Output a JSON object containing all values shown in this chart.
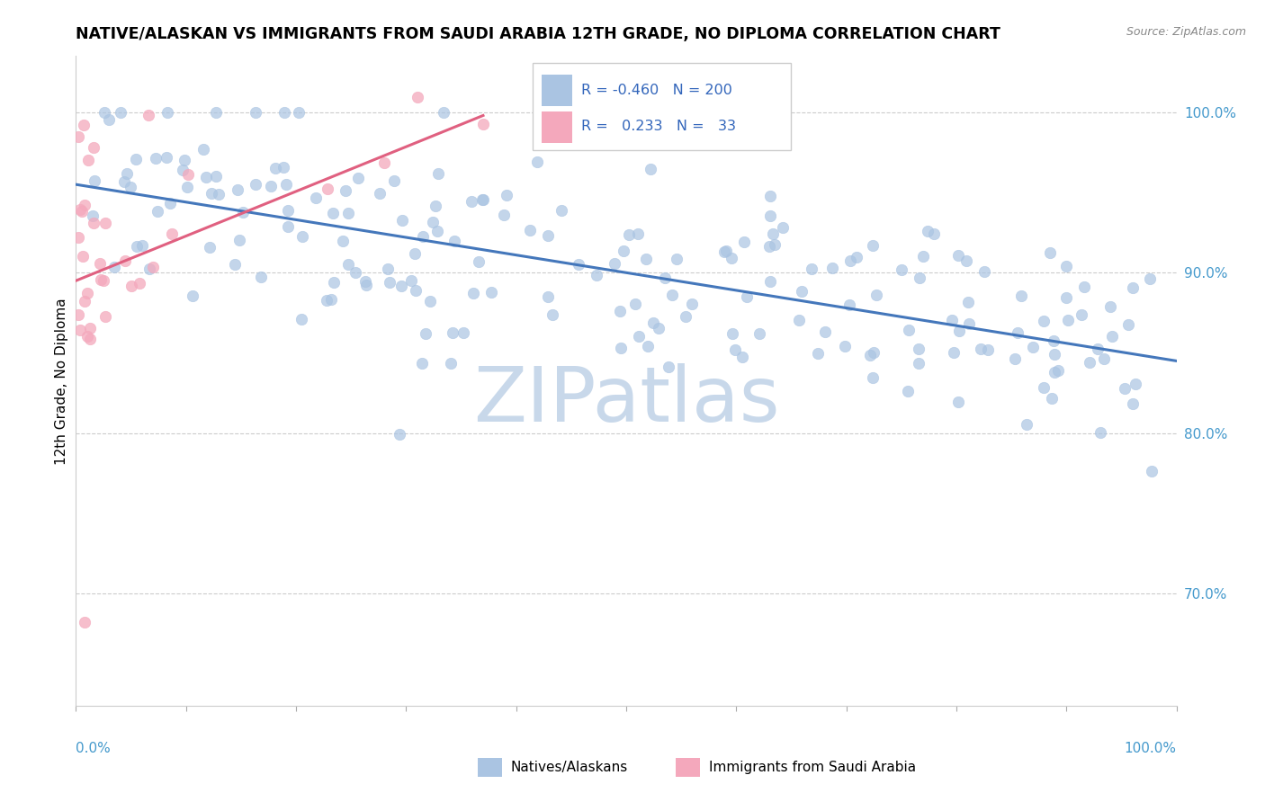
{
  "title": "NATIVE/ALASKAN VS IMMIGRANTS FROM SAUDI ARABIA 12TH GRADE, NO DIPLOMA CORRELATION CHART",
  "source": "Source: ZipAtlas.com",
  "ylabel": "12th Grade, No Diploma",
  "legend_blue_R": "-0.460",
  "legend_blue_N": "200",
  "legend_pink_R": "0.233",
  "legend_pink_N": "33",
  "blue_color": "#aac4e2",
  "pink_color": "#f4a8bc",
  "blue_line_color": "#4477bb",
  "pink_line_color": "#e06080",
  "watermark": "ZIPatlas",
  "watermark_color": "#c8d8ea",
  "xlim": [
    0.0,
    1.0
  ],
  "ylim": [
    0.63,
    1.035
  ],
  "yticks": [
    0.7,
    0.8,
    0.9,
    1.0
  ],
  "blue_trend_x": [
    0.0,
    1.0
  ],
  "blue_trend_y": [
    0.955,
    0.845
  ],
  "pink_trend_x": [
    0.0,
    0.37
  ],
  "pink_trend_y": [
    0.895,
    0.998
  ]
}
